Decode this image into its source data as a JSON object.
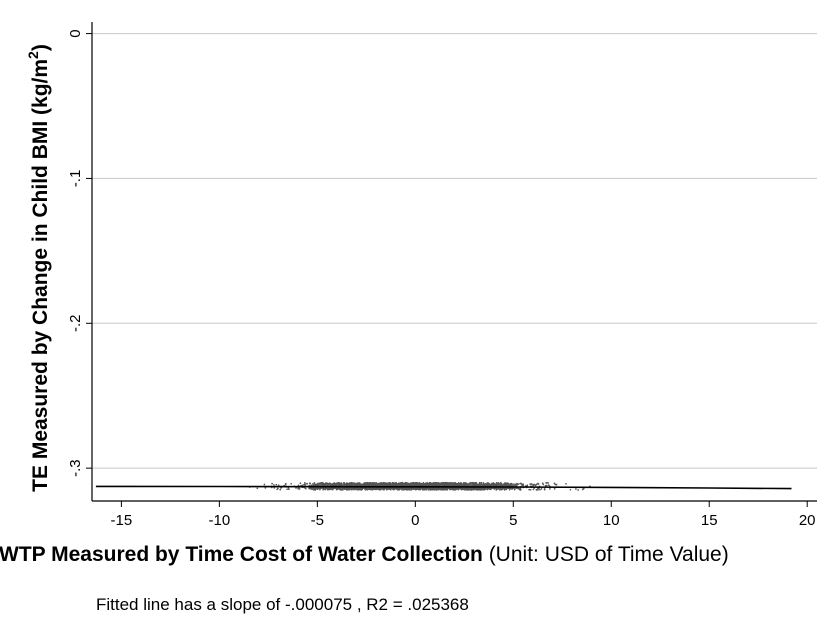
{
  "chart_data": {
    "type": "scatter",
    "title": "",
    "xlabel_bold": "WTP Measured by Time Cost of Water Collection",
    "xlabel_rest": " (Unit: USD of Time Value)",
    "ylabel_main": "TE Measured by Change in Child BMI (kg/m",
    "ylabel_sup": "2",
    "ylabel_close": ")",
    "note": "Fitted line has a slope of -.000075 , R2 = .025368",
    "xlim": [
      -16.5,
      20.5
    ],
    "ylim": [
      -0.322,
      0.008
    ],
    "x_ticks": [
      -15,
      -10,
      -5,
      0,
      5,
      10,
      15,
      20
    ],
    "x_tick_labels": [
      "-15",
      "-10",
      "-5",
      "0",
      "5",
      "10",
      "15",
      "20"
    ],
    "y_ticks": [
      0,
      -0.1,
      -0.2,
      -0.3
    ],
    "y_tick_labels": [
      "0",
      "-.1",
      "-.2",
      "-.3"
    ],
    "grid": "horizontal",
    "series": [
      {
        "kind": "points",
        "color": "#555555",
        "x_range": [
          -16.3,
          19.3
        ],
        "y_center": -0.3125,
        "y_spread": 0.0025
      },
      {
        "kind": "fitted_line",
        "color": "#000000",
        "x": [
          -16.3,
          -10,
          -5,
          0,
          5,
          10,
          15,
          19.2
        ],
        "y": [
          -0.3126,
          -0.3127,
          -0.3128,
          -0.3129,
          -0.313,
          -0.3133,
          -0.3137,
          -0.3141
        ]
      }
    ]
  }
}
